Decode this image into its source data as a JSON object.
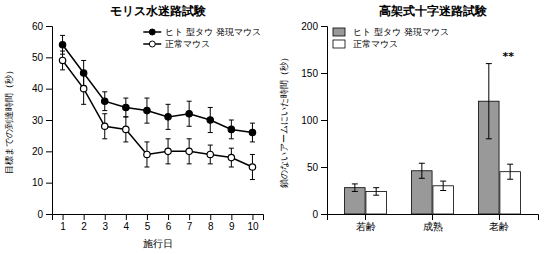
{
  "chart_data": [
    {
      "type": "line",
      "title": "モリス水迷路試験",
      "xlabel": "施行日",
      "ylabel": "目標までの到達時間（秒）",
      "x": [
        1,
        2,
        3,
        4,
        5,
        6,
        7,
        8,
        9,
        10
      ],
      "xlim": [
        0.5,
        10.5
      ],
      "xticks": [
        1,
        2,
        3,
        4,
        5,
        6,
        7,
        8,
        9,
        10
      ],
      "ylim": [
        0,
        60
      ],
      "yticks": [
        0,
        10,
        20,
        30,
        40,
        50,
        60
      ],
      "grid": false,
      "legend": "upper-right",
      "series": [
        {
          "name": "ヒト 型タウ 発現マウス",
          "color": "#000000",
          "marker": "filled",
          "line_style": "solid",
          "values": [
            54,
            45,
            36,
            34,
            33,
            31,
            32,
            30,
            27,
            26
          ],
          "errors": [
            3,
            4,
            3,
            3,
            4,
            4,
            4,
            4,
            3,
            3
          ]
        },
        {
          "name": "正常マウス",
          "color": "#000000",
          "marker": "open",
          "line_style": "solid",
          "values": [
            49,
            40,
            28,
            27,
            19,
            20,
            20,
            19,
            18,
            15
          ],
          "errors": [
            3,
            5,
            4,
            4,
            4,
            4,
            4,
            3,
            3,
            4
          ]
        }
      ]
    },
    {
      "type": "bar",
      "title": "高架式十字迷路試験",
      "ylabel": "鎖のないアームにいた時間（秒）",
      "categories": [
        "若齢",
        "成熟",
        "老齢"
      ],
      "ylim": [
        0,
        200
      ],
      "yticks": [
        0,
        50,
        100,
        150,
        200
      ],
      "grid": false,
      "legend": "upper-left",
      "series": [
        {
          "name": "ヒト 型タウ 発現マウス",
          "color": "#999999",
          "values": [
            28,
            46,
            120
          ],
          "errors": [
            4,
            8,
            40
          ]
        },
        {
          "name": "正常マウス",
          "color": "#ffffff",
          "values": [
            24,
            30,
            45
          ],
          "errors": [
            4,
            5,
            8
          ]
        }
      ],
      "annotations": [
        {
          "text": "**",
          "x": "老齢",
          "y": 164
        }
      ]
    }
  ]
}
